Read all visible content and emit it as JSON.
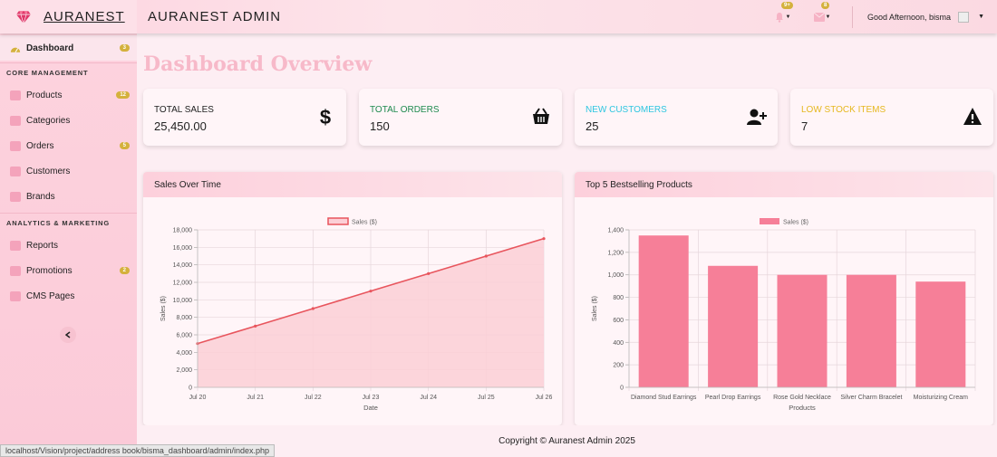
{
  "brand": {
    "name": "AURANEST",
    "admin_title": "AURANEST ADMIN"
  },
  "topbar": {
    "notifications_badge": "9+",
    "messages_badge": "8",
    "greeting": "Good Afternoon, bisma"
  },
  "sidebar": {
    "dashboard": {
      "label": "Dashboard",
      "badge": "3"
    },
    "section1": "CORE MANAGEMENT",
    "items1": [
      {
        "label": "Products",
        "badge": "12",
        "icon": "tag-icon"
      },
      {
        "label": "Categories",
        "badge": "",
        "icon": "sitemap-icon"
      },
      {
        "label": "Orders",
        "badge": "5",
        "icon": "cart-icon"
      },
      {
        "label": "Customers",
        "badge": "",
        "icon": "users-icon"
      },
      {
        "label": "Brands",
        "badge": "",
        "icon": "copyright-icon"
      }
    ],
    "section2": "ANALYTICS & MARKETING",
    "items2": [
      {
        "label": "Reports",
        "badge": "",
        "icon": "chart-icon"
      },
      {
        "label": "Promotions",
        "badge": "2",
        "icon": "percent-icon"
      },
      {
        "label": "CMS Pages",
        "badge": "",
        "icon": "edit-icon"
      }
    ]
  },
  "page": {
    "title": "Dashboard Overview"
  },
  "cards": [
    {
      "label": "TOTAL SALES",
      "value": "25,450.00",
      "color": "#222222",
      "icon": "dollar-icon"
    },
    {
      "label": "TOTAL ORDERS",
      "value": "150",
      "color": "#1e8a4e",
      "icon": "basket-icon"
    },
    {
      "label": "NEW CUSTOMERS",
      "value": "25",
      "color": "#2ec6e0",
      "icon": "user-plus-icon"
    },
    {
      "label": "LOW STOCK ITEMS",
      "value": "7",
      "color": "#e6b81f",
      "icon": "warning-icon"
    }
  ],
  "panels": {
    "sales_title": "Sales Over Time",
    "top_title": "Top 5 Bestselling Products"
  },
  "chart_data": [
    {
      "type": "line",
      "title": "Sales Over Time",
      "x": [
        "Jul 20",
        "Jul 21",
        "Jul 22",
        "Jul 23",
        "Jul 24",
        "Jul 25",
        "Jul 26"
      ],
      "series": [
        {
          "name": "Sales ($)",
          "values": [
            5000,
            7000,
            9000,
            11000,
            13000,
            15000,
            17000
          ]
        }
      ],
      "xlabel": "Date",
      "ylabel": "Sales ($)",
      "ylim": [
        0,
        18000
      ],
      "yticks": [
        "0",
        "2,000",
        "4,000",
        "6,000",
        "8,000",
        "10,000",
        "12,000",
        "14,000",
        "16,000",
        "18,000"
      ],
      "grid": true,
      "legend": "top-center",
      "color": "#e8555d",
      "fill": "#fccfd6"
    },
    {
      "type": "bar",
      "title": "Top 5 Bestselling Products",
      "categories": [
        "Diamond Stud Earrings",
        "Pearl Drop Earrings",
        "Rose Gold Necklace",
        "Silver Charm Bracelet",
        "Moisturizing Cream"
      ],
      "series": [
        {
          "name": "Sales ($)",
          "values": [
            1350,
            1080,
            1000,
            1000,
            940
          ]
        }
      ],
      "xlabel": "Products",
      "ylabel": "Sales ($)",
      "ylim": [
        0,
        1400
      ],
      "yticks": [
        "0",
        "200",
        "400",
        "600",
        "800",
        "1,000",
        "1,200",
        "1,400"
      ],
      "grid": true,
      "legend": "top-center",
      "color": "#f67f98"
    }
  ],
  "footer": {
    "copyright": "Copyright © Auranest Admin 2025"
  },
  "status_url": "localhost/Vision/project/address book/bisma_dashboard/admin/index.php"
}
